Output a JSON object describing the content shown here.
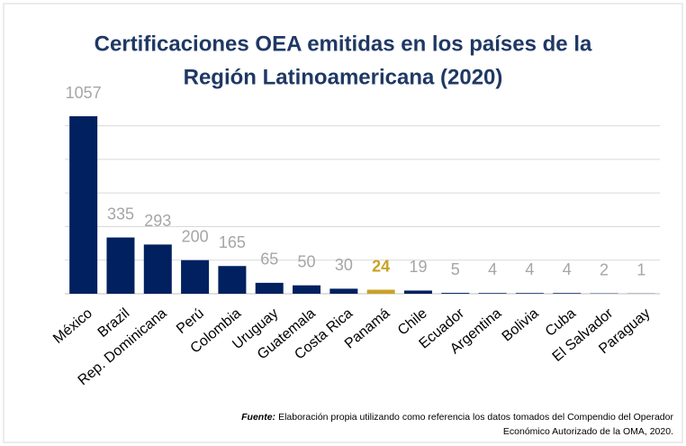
{
  "chart_data": {
    "type": "bar",
    "title": [
      "Certificaciones OEA emitidas en los países de la",
      "Región Latinoamericana (2020)"
    ],
    "categories": [
      "México",
      "Brazil",
      "Rep. Dominicana",
      "Perú",
      "Colombia",
      "Uruguay",
      "Guatemala",
      "Costa Rica",
      "Panamá",
      "Chile",
      "Ecuador",
      "Argentina",
      "Bolivia",
      "Cuba",
      "El Salvador",
      "Paraguay"
    ],
    "values": [
      1057,
      335,
      293,
      200,
      165,
      65,
      50,
      30,
      24,
      19,
      5,
      4,
      4,
      4,
      2,
      1
    ],
    "colors": [
      "#002060",
      "#002060",
      "#002060",
      "#002060",
      "#002060",
      "#002060",
      "#002060",
      "#002060",
      "#c9a227",
      "#002060",
      "#002060",
      "#002060",
      "#002060",
      "#002060",
      "#002060",
      "#002060"
    ],
    "value_label_colors": [
      "#a6a6a6",
      "#a6a6a6",
      "#a6a6a6",
      "#a6a6a6",
      "#a6a6a6",
      "#a6a6a6",
      "#a6a6a6",
      "#a6a6a6",
      "#c9a227",
      "#a6a6a6",
      "#a6a6a6",
      "#a6a6a6",
      "#a6a6a6",
      "#a6a6a6",
      "#a6a6a6",
      "#a6a6a6"
    ],
    "ylim": [
      0,
      1100
    ],
    "yticks": [
      0,
      200,
      400,
      600,
      800,
      1000
    ],
    "grid": true,
    "show_tick_labels": false,
    "source": {
      "label": "Fuente:",
      "lines": [
        "Elaboración propia utilizando como referencia los datos tomados del Compendio del Operador",
        "Económico Autorizado de la OMA, 2020."
      ]
    }
  }
}
